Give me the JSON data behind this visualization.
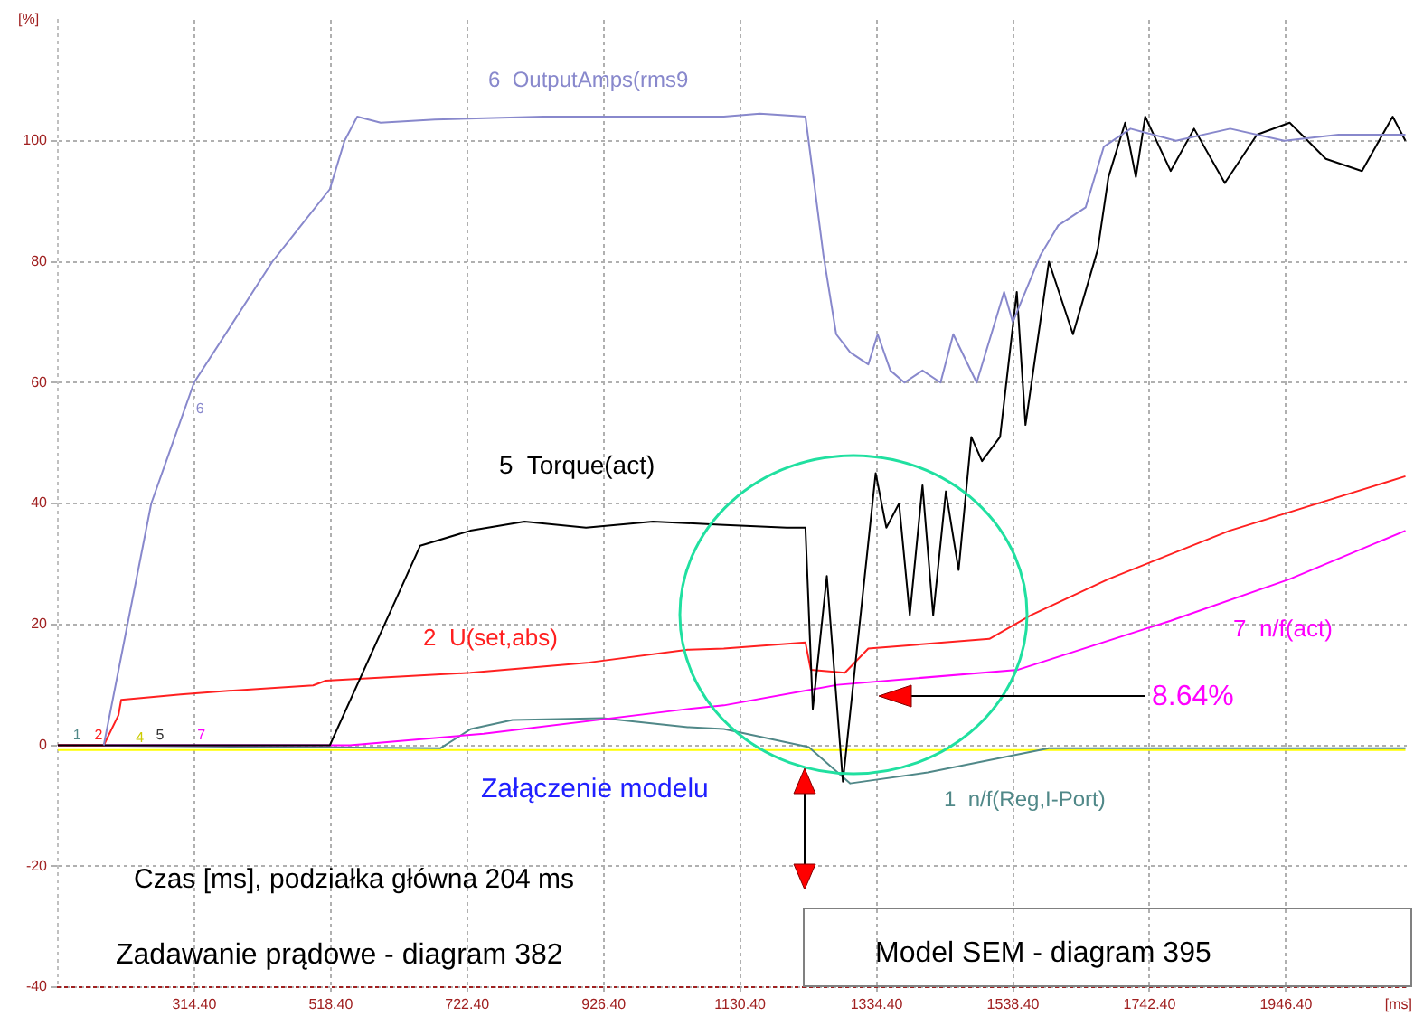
{
  "chart_data": {
    "type": "line",
    "ylabel": "[%]",
    "xlabel": "[ms]",
    "xlim": [
      110.4,
      2127
    ],
    "xticks": [
      {
        "value": 314.4,
        "label": "314.40"
      },
      {
        "value": 518.4,
        "label": "518.40"
      },
      {
        "value": 722.4,
        "label": "722.40"
      },
      {
        "value": 926.4,
        "label": "926.40"
      },
      {
        "value": 1130.4,
        "label": "1130.40"
      },
      {
        "value": 1334.4,
        "label": "1334.40"
      },
      {
        "value": 1538.4,
        "label": "1538.40"
      },
      {
        "value": 1742.4,
        "label": "1742.40"
      },
      {
        "value": 1946.4,
        "label": "1946.40"
      }
    ],
    "ylim": [
      -40,
      120
    ],
    "yticks": [
      -40,
      -20,
      0,
      20,
      40,
      60,
      80,
      100
    ],
    "grid": true,
    "legend": false,
    "marker": "none",
    "line_style": "solid",
    "series": [
      {
        "name": "6  OutputAmps(rms9",
        "color": "#8888cc",
        "x": [
          179,
          250,
          314,
          431,
          517,
          539,
          558,
          593,
          674,
          836,
          971,
          1106,
          1160,
          1228,
          1241,
          1255,
          1274,
          1295,
          1322,
          1336,
          1355,
          1376,
          1403,
          1430,
          1449,
          1484,
          1525,
          1538,
          1579,
          1606,
          1647,
          1674,
          1714,
          1782,
          1863,
          1944,
          2025,
          2125
        ],
        "values": [
          0,
          40,
          60,
          80,
          92,
          100,
          104,
          103,
          103.5,
          104,
          104,
          104,
          104.5,
          104,
          93,
          81,
          68,
          65,
          63,
          68,
          62,
          60,
          62,
          60,
          68,
          60,
          75,
          70,
          81,
          86,
          89,
          99,
          102,
          100,
          102,
          100,
          101,
          101
        ]
      },
      {
        "name": "5  Torque(act)",
        "color": "#000000",
        "x": [
          110.4,
          517,
          652,
          727,
          808,
          900,
          1000,
          1100,
          1200,
          1228,
          1239,
          1260,
          1284,
          1333,
          1349,
          1368,
          1384,
          1403,
          1419,
          1438,
          1457,
          1476,
          1492,
          1519,
          1544,
          1557,
          1592,
          1628,
          1665,
          1681,
          1706,
          1722,
          1736,
          1774,
          1809,
          1855,
          1903,
          1952,
          2006,
          2060,
          2106,
          2125
        ],
        "values": [
          0,
          0,
          33,
          35.5,
          37,
          36,
          37,
          36.5,
          36,
          36,
          6,
          28,
          -6,
          45,
          36,
          40,
          21.5,
          43,
          21.5,
          42,
          29,
          51,
          47,
          51,
          75,
          53,
          80,
          68,
          82,
          94,
          103,
          94,
          104,
          95,
          102,
          93,
          101,
          103,
          97,
          95,
          104,
          100
        ]
      },
      {
        "name": "2  U(set,abs)",
        "color": "#ff2020",
        "x": [
          110.4,
          179,
          201,
          205,
          294,
          365,
          492,
          511,
          727,
          905,
          1052,
          1106,
          1228,
          1236,
          1287,
          1322,
          1503,
          1565,
          1681,
          1862,
          2125
        ],
        "values": [
          0,
          0,
          5,
          7.5,
          8.4,
          9,
          9.9,
          10.7,
          12,
          13.7,
          15.8,
          16,
          17,
          12.5,
          12,
          16,
          17.6,
          21.5,
          27.5,
          35.5,
          44.5
        ]
      },
      {
        "name": "7  n/f(act)",
        "color": "#ff00ff",
        "x": [
          110.4,
          547,
          747,
          1052,
          1106,
          1276,
          1546,
          1774,
          1952,
          2125
        ],
        "values": [
          0,
          0,
          1.9,
          6,
          6.6,
          10,
          12.5,
          20.6,
          27.5,
          35.5
        ]
      },
      {
        "name": "1  n/f(Reg,I-Port)",
        "color": "#508888",
        "x": [
          110.4,
          682,
          728,
          790,
          925,
          1052,
          1106,
          1233,
          1295,
          1411,
          1592,
          2125
        ],
        "values": [
          0,
          -0.5,
          2.7,
          4.2,
          4.5,
          3,
          2.7,
          -0.3,
          -6.3,
          -4.5,
          -0.5,
          -0.5
        ]
      },
      {
        "color": "#ffff00",
        "x": [
          110.4,
          2125
        ],
        "values": [
          -0.8,
          -0.8
        ]
      }
    ],
    "annotations": [
      "Załączenie modelu",
      "Czas [ms], podziałka główna 204 ms",
      "Zadawanie prądowe - diagram 382",
      "Model SEM - diagram 395",
      "8.64%",
      {
        "text": "1",
        "x": 139,
        "y": 1
      },
      {
        "text": "2",
        "x": 171,
        "y": 1
      },
      {
        "text": "4",
        "x": 233,
        "y": 0.5
      },
      {
        "text": "5",
        "x": 263,
        "y": 1
      },
      {
        "text": "7",
        "x": 325,
        "y": 1
      },
      {
        "text": "6",
        "x": 298,
        "y": 55
      }
    ]
  }
}
